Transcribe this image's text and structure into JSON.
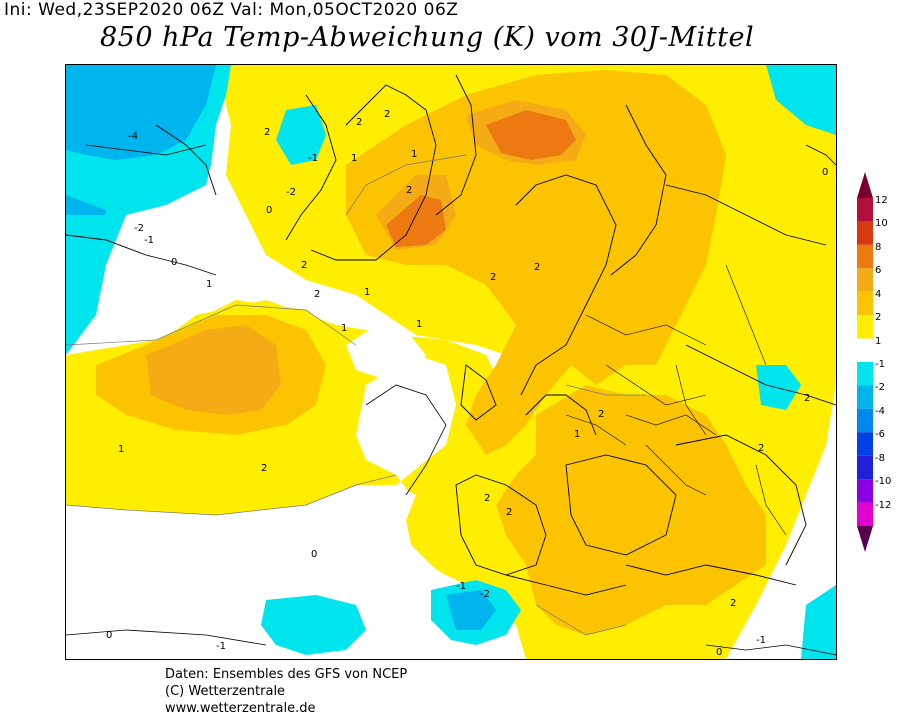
{
  "header": {
    "init_line": "Ini: Wed,23SEP2020 06Z Val: Mon,05OCT2020 06Z",
    "title": "850 hPa Temp-Abweichung (K) vom 30J-Mittel"
  },
  "legend": {
    "levels": [
      {
        "label": "12",
        "color": "#b0103a"
      },
      {
        "label": "10",
        "color": "#d83a10"
      },
      {
        "label": "8",
        "color": "#ec7a10"
      },
      {
        "label": "6",
        "color": "#f5ab16"
      },
      {
        "label": "4",
        "color": "#fcc400"
      },
      {
        "label": "2",
        "color": "#ffee00"
      },
      {
        "label": "1",
        "color": "#ffffff"
      },
      {
        "label": "-1",
        "color": "#00e4ee"
      },
      {
        "label": "-2",
        "color": "#00b4ee"
      },
      {
        "label": "-4",
        "color": "#0088ee"
      },
      {
        "label": "-6",
        "color": "#0040e6"
      },
      {
        "label": "-8",
        "color": "#2020d8"
      },
      {
        "label": "-10",
        "color": "#8a00e0"
      },
      {
        "label": "-12",
        "color": "#e000d0"
      }
    ],
    "top_cap_color": "#7a0030",
    "bottom_cap_color": "#5a0050"
  },
  "map": {
    "contour_labels": [
      "-4",
      "-2",
      "-1",
      "0",
      "1",
      "2",
      "2",
      "2",
      "1",
      "-1",
      "-2",
      "2",
      "0",
      "1",
      "2",
      "2",
      "2",
      "1",
      "1",
      "2",
      "-1",
      "0",
      "1",
      "2",
      "2",
      "0",
      "-1",
      "-2",
      "-1",
      "0",
      "2",
      "2",
      "2",
      "0",
      "1",
      "2",
      "1",
      "2"
    ]
  },
  "footer": {
    "line1": "Daten: Ensembles des GFS von NCEP",
    "line2": "(C) Wetterzentrale",
    "line3": "www.wetterzentrale.de"
  }
}
